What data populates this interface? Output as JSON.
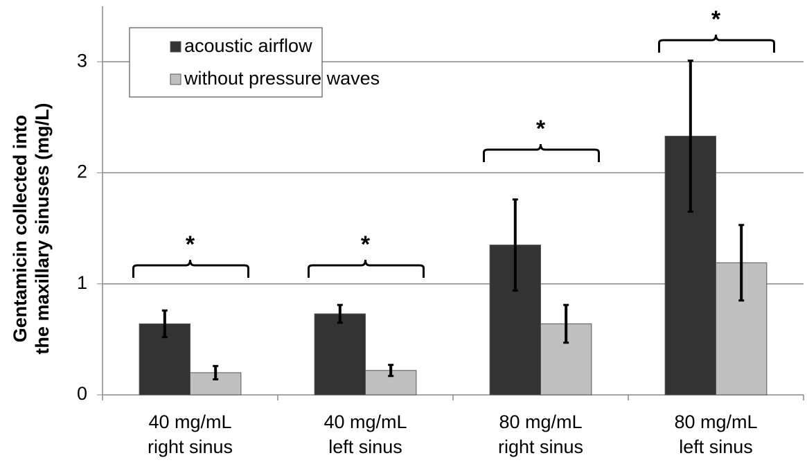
{
  "chart_data": {
    "type": "bar",
    "ylabel": [
      "Gentamicin collected into",
      "the maxillary sinuses (mg/L)"
    ],
    "categories": [
      [
        "40 mg/mL",
        "right sinus"
      ],
      [
        "40 mg/mL",
        "left sinus"
      ],
      [
        "80 mg/mL",
        "right sinus"
      ],
      [
        "80 mg/mL",
        "left sinus"
      ]
    ],
    "series": [
      {
        "name": "acoustic airflow",
        "color": "#333333",
        "values": [
          0.64,
          0.73,
          1.35,
          2.33
        ],
        "errors": [
          0.12,
          0.08,
          0.41,
          0.68
        ]
      },
      {
        "name": "without pressure waves",
        "color": "#c0c0c0",
        "values": [
          0.2,
          0.22,
          0.64,
          1.19
        ],
        "errors": [
          0.06,
          0.05,
          0.17,
          0.34
        ]
      }
    ],
    "annotations": [
      "*",
      "*",
      "*",
      "*"
    ],
    "ylim": [
      0,
      3.5
    ],
    "yticks": [
      0,
      1,
      2,
      3
    ],
    "grid": true,
    "legend": "upper left"
  }
}
